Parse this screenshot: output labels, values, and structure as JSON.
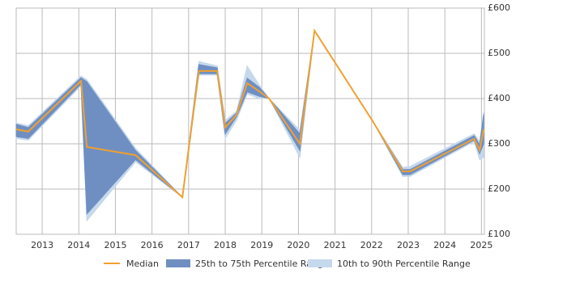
{
  "chart_data": {
    "type": "range-line",
    "x": [
      2012.29,
      2012.62,
      2014.06,
      2014.22,
      2015.55,
      2016.83,
      2017.28,
      2017.78,
      2018.0,
      2018.31,
      2018.6,
      2018.93,
      2019.2,
      2020.04,
      2020.44,
      2022.03,
      2022.85,
      2023.05,
      2024.8,
      2024.95,
      2025.06
    ],
    "series": [
      {
        "name": "10th to 90th Percentile Range",
        "color": "#c6d8ec",
        "low": [
          312,
          308,
          428,
          130,
          260,
          182,
          452,
          452,
          312,
          352,
          410,
          400,
          400,
          270,
          550,
          350,
          228,
          228,
          305,
          265,
          270
        ],
        "high": [
          346,
          340,
          450,
          442,
          290,
          182,
          482,
          472,
          352,
          372,
          472,
          430,
          400,
          330,
          550,
          350,
          248,
          250,
          322,
          305,
          370
        ]
      },
      {
        "name": "25th to 75th Percentile Range",
        "color": "#6f8fc2",
        "low": [
          316,
          312,
          432,
          145,
          265,
          182,
          455,
          455,
          322,
          360,
          415,
          405,
          400,
          285,
          550,
          350,
          232,
          232,
          308,
          278,
          300
        ],
        "high": [
          343,
          336,
          446,
          437,
          285,
          182,
          475,
          468,
          345,
          368,
          445,
          425,
          400,
          322,
          550,
          350,
          243,
          243,
          318,
          298,
          365
        ]
      },
      {
        "name": "Median",
        "color": "#f0a030",
        "values": [
          332,
          327,
          439,
          293,
          275,
          182,
          461,
          461,
          336,
          364,
          434,
          416,
          400,
          300,
          550,
          350,
          239,
          239,
          311,
          286,
          332
        ]
      }
    ],
    "xlim": [
      2012.29,
      2025.08
    ],
    "xticks": [
      2013,
      2014,
      2015,
      2016,
      2017,
      2018,
      2019,
      2020,
      2021,
      2022,
      2023,
      2024,
      2025
    ],
    "ylim": [
      100,
      600
    ],
    "yticks": [
      {
        "value": 100,
        "label": "£100"
      },
      {
        "value": 200,
        "label": "£200"
      },
      {
        "value": 300,
        "label": "£300"
      },
      {
        "value": 400,
        "label": "£400"
      },
      {
        "value": 500,
        "label": "£500"
      },
      {
        "value": 600,
        "label": "£600"
      }
    ],
    "grid": true
  }
}
